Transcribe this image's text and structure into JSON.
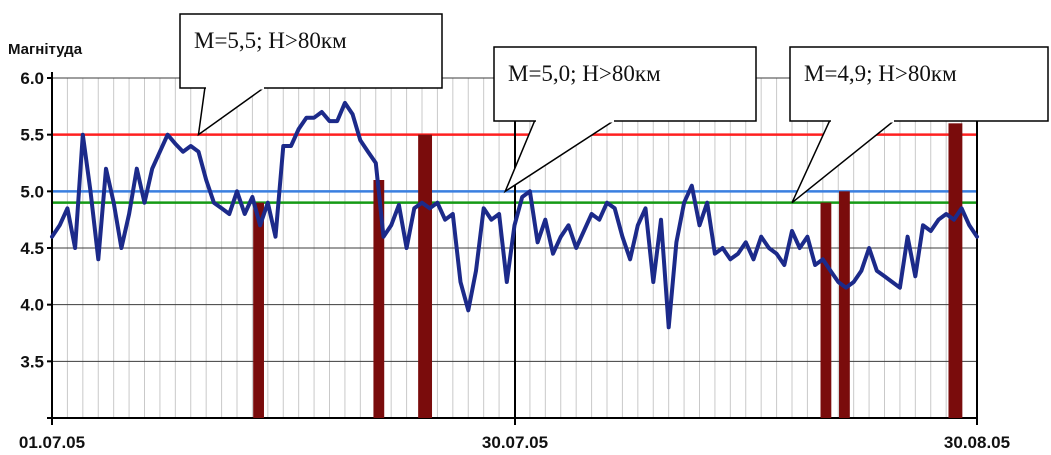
{
  "chart_data": {
    "type": "line",
    "ylabel": "Магнітуда",
    "ylim": [
      3.0,
      6.0
    ],
    "y_ticks": [
      "6.0",
      "5.5",
      "5.0",
      "4.5",
      "4.0",
      "3.5"
    ],
    "x_ticks": [
      "01.07.05",
      "30.07.05",
      "30.08.05"
    ],
    "x_range_days": [
      0,
      60
    ],
    "grid": "vertical light grey lines each day, horizontal lines each 0.5",
    "series": [
      {
        "color": "#1c2a8a",
        "x": [
          0,
          0.5,
          1,
          1.5,
          2,
          2.5,
          3,
          3.5,
          4,
          4.5,
          5,
          5.5,
          6,
          6.5,
          7,
          7.5,
          8,
          8.5,
          9,
          9.5,
          10,
          10.5,
          11,
          11.5,
          12,
          12.5,
          13,
          13.5,
          14,
          14.5,
          15,
          15.5,
          16,
          16.5,
          17,
          17.5,
          18,
          18.5,
          19,
          19.5,
          20,
          20.5,
          21,
          21.5,
          22,
          22.5,
          23,
          23.5,
          24,
          24.5,
          25,
          25.5,
          26,
          26.5,
          27,
          27.5,
          28,
          28.5,
          29,
          29.5,
          30,
          30.5,
          31,
          31.5,
          32,
          32.5,
          33,
          33.5,
          34,
          34.5,
          35,
          35.5,
          36,
          36.5,
          37,
          37.5,
          38,
          38.5,
          39,
          39.5,
          40,
          40.5,
          41,
          41.5,
          42,
          42.5,
          43,
          43.5,
          44,
          44.5,
          45,
          45.5,
          46,
          46.5,
          47,
          47.5,
          48,
          48.5,
          49,
          49.5,
          50,
          50.5,
          51,
          51.5,
          52,
          52.5,
          53,
          53.5,
          54,
          54.5,
          55,
          55.5,
          56,
          56.5,
          57,
          57.5,
          58,
          58.5,
          59,
          59.5,
          60
        ],
        "y": [
          4.6,
          4.7,
          4.85,
          4.5,
          5.5,
          5.0,
          4.4,
          5.2,
          4.9,
          4.5,
          4.8,
          5.2,
          4.9,
          5.2,
          5.35,
          5.5,
          5.42,
          5.35,
          5.4,
          5.35,
          5.1,
          4.9,
          4.85,
          4.8,
          5.0,
          4.8,
          4.95,
          4.7,
          4.9,
          4.6,
          5.4,
          5.4,
          5.55,
          5.65,
          5.65,
          5.7,
          5.62,
          5.62,
          5.78,
          5.68,
          5.45,
          5.35,
          5.25,
          4.6,
          4.7,
          4.88,
          4.5,
          4.85,
          4.9,
          4.85,
          4.9,
          4.75,
          4.8,
          4.2,
          3.95,
          4.3,
          4.85,
          4.75,
          4.8,
          4.2,
          4.7,
          4.95,
          5.0,
          4.55,
          4.75,
          4.45,
          4.6,
          4.7,
          4.5,
          4.65,
          4.8,
          4.75,
          4.9,
          4.85,
          4.6,
          4.4,
          4.7,
          4.85,
          4.2,
          4.75,
          3.8,
          4.55,
          4.9,
          5.05,
          4.7,
          4.9,
          4.45,
          4.5,
          4.4,
          4.45,
          4.55,
          4.4,
          4.6,
          4.5,
          4.45,
          4.35,
          4.65,
          4.5,
          4.6,
          4.35,
          4.4,
          4.3,
          4.2,
          4.15,
          4.2,
          4.3,
          4.5,
          4.3,
          4.25,
          4.2,
          4.15,
          4.6,
          4.25,
          4.7,
          4.65,
          4.75,
          4.8,
          4.75,
          4.85,
          4.7,
          4.6
        ]
      }
    ],
    "threshold_lines": [
      {
        "y": 5.5,
        "color": "#ff2020"
      },
      {
        "y": 5.0,
        "color": "#3a7fe0"
      },
      {
        "y": 4.9,
        "color": "#159a15"
      }
    ],
    "events": [
      {
        "x": 13.4,
        "y": 4.9,
        "width": 0.7,
        "color": "#7a0c0c"
      },
      {
        "x": 21.2,
        "y": 5.1,
        "width": 0.7,
        "color": "#7a0c0c"
      },
      {
        "x": 24.2,
        "y": 5.5,
        "width": 0.9,
        "color": "#7a0c0c"
      },
      {
        "x": 50.2,
        "y": 4.9,
        "width": 0.7,
        "color": "#7a0c0c"
      },
      {
        "x": 51.4,
        "y": 5.0,
        "width": 0.7,
        "color": "#7a0c0c"
      },
      {
        "x": 58.6,
        "y": 5.6,
        "width": 0.9,
        "color": "#7a0c0c"
      }
    ],
    "annotations": [
      {
        "text": "M=5,5;  H>80км",
        "target_x": 9.5,
        "target_y": 5.5
      },
      {
        "text": "M=5,0;  H>80км",
        "target_x": 29.4,
        "target_y": 5.0
      },
      {
        "text": "M=4,9;  H>80км",
        "target_x": 48.0,
        "target_y": 4.9
      }
    ]
  }
}
